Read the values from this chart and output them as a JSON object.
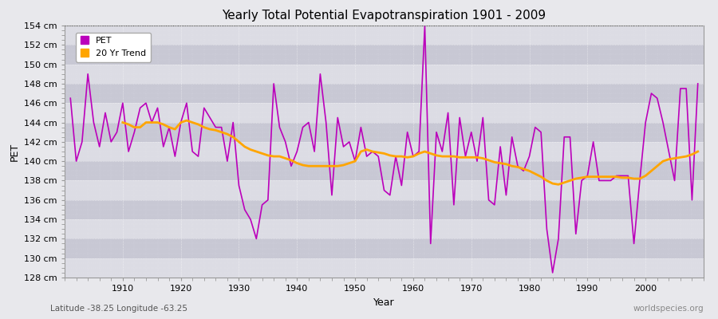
{
  "title": "Yearly Total Potential Evapotranspiration 1901 - 2009",
  "xlabel": "Year",
  "ylabel": "PET",
  "lat_lon_label": "Latitude -38.25 Longitude -63.25",
  "watermark": "worldspecies.org",
  "pet_color": "#bb00bb",
  "trend_color": "#ffa500",
  "bg_color": "#e8e8ec",
  "plot_bg_color": "#d8d8e0",
  "band_color_light": "#dcdce4",
  "band_color_dark": "#c8c8d4",
  "ylim_min": 128,
  "ylim_max": 154,
  "ytick_step": 2,
  "years": [
    1901,
    1902,
    1903,
    1904,
    1905,
    1906,
    1907,
    1908,
    1909,
    1910,
    1911,
    1912,
    1913,
    1914,
    1915,
    1916,
    1917,
    1918,
    1919,
    1920,
    1921,
    1922,
    1923,
    1924,
    1925,
    1926,
    1927,
    1928,
    1929,
    1930,
    1931,
    1932,
    1933,
    1934,
    1935,
    1936,
    1937,
    1938,
    1939,
    1940,
    1941,
    1942,
    1943,
    1944,
    1945,
    1946,
    1947,
    1948,
    1949,
    1950,
    1951,
    1952,
    1953,
    1954,
    1955,
    1956,
    1957,
    1958,
    1959,
    1960,
    1961,
    1962,
    1963,
    1964,
    1965,
    1966,
    1967,
    1968,
    1969,
    1970,
    1971,
    1972,
    1973,
    1974,
    1975,
    1976,
    1977,
    1978,
    1979,
    1980,
    1981,
    1982,
    1983,
    1984,
    1985,
    1986,
    1987,
    1988,
    1989,
    1990,
    1991,
    1992,
    1993,
    1994,
    1995,
    1996,
    1997,
    1998,
    1999,
    2000,
    2001,
    2002,
    2003,
    2004,
    2005,
    2006,
    2007,
    2008,
    2009
  ],
  "pet_values": [
    146.5,
    140.0,
    142.0,
    149.0,
    144.0,
    141.5,
    145.0,
    142.0,
    143.0,
    146.0,
    141.0,
    143.0,
    145.5,
    146.0,
    144.0,
    145.5,
    141.5,
    143.5,
    140.5,
    144.0,
    146.0,
    141.0,
    140.5,
    145.5,
    144.5,
    143.5,
    143.5,
    140.0,
    144.0,
    137.5,
    135.0,
    134.0,
    132.0,
    135.5,
    136.0,
    148.0,
    143.5,
    142.0,
    139.5,
    141.0,
    143.5,
    144.0,
    141.0,
    149.0,
    144.0,
    136.5,
    144.5,
    141.5,
    142.0,
    140.0,
    143.5,
    140.5,
    141.0,
    140.5,
    137.0,
    136.5,
    140.5,
    137.5,
    143.0,
    140.5,
    141.0,
    154.0,
    131.5,
    143.0,
    141.0,
    145.0,
    135.5,
    144.5,
    140.5,
    143.0,
    140.0,
    144.5,
    136.0,
    135.5,
    141.5,
    136.5,
    142.5,
    139.5,
    139.0,
    140.5,
    143.5,
    143.0,
    133.0,
    128.5,
    132.0,
    142.5,
    142.5,
    132.5,
    138.0,
    138.5,
    142.0,
    138.0,
    138.0,
    138.0,
    138.5,
    138.5,
    138.5,
    131.5,
    138.0,
    144.0,
    147.0,
    146.5,
    144.0,
    141.0,
    138.0,
    147.5,
    147.5,
    136.0,
    148.0
  ],
  "trend_values": [
    null,
    null,
    null,
    null,
    null,
    null,
    null,
    null,
    null,
    144.0,
    143.8,
    143.5,
    143.5,
    144.0,
    144.0,
    144.0,
    143.8,
    143.5,
    143.3,
    144.0,
    144.2,
    144.0,
    143.8,
    143.5,
    143.3,
    143.2,
    143.0,
    142.8,
    142.5,
    142.0,
    141.5,
    141.2,
    141.0,
    140.8,
    140.6,
    140.5,
    140.5,
    140.3,
    140.1,
    139.8,
    139.6,
    139.5,
    139.5,
    139.5,
    139.5,
    139.5,
    139.5,
    139.6,
    139.8,
    140.0,
    141.0,
    141.2,
    141.0,
    140.9,
    140.8,
    140.6,
    140.5,
    140.5,
    140.4,
    140.5,
    140.8,
    141.0,
    140.8,
    140.6,
    140.5,
    140.5,
    140.5,
    140.4,
    140.4,
    140.4,
    140.4,
    140.3,
    140.1,
    139.9,
    139.8,
    139.7,
    139.5,
    139.4,
    139.2,
    139.0,
    138.7,
    138.4,
    138.0,
    137.7,
    137.6,
    137.8,
    138.0,
    138.2,
    138.3,
    138.4,
    138.4,
    138.4,
    138.4,
    138.4,
    138.4,
    138.3,
    138.3,
    138.2,
    138.2,
    138.5,
    139.0,
    139.5,
    140.0,
    140.2,
    140.3,
    140.4,
    140.5,
    140.7,
    141.0
  ]
}
